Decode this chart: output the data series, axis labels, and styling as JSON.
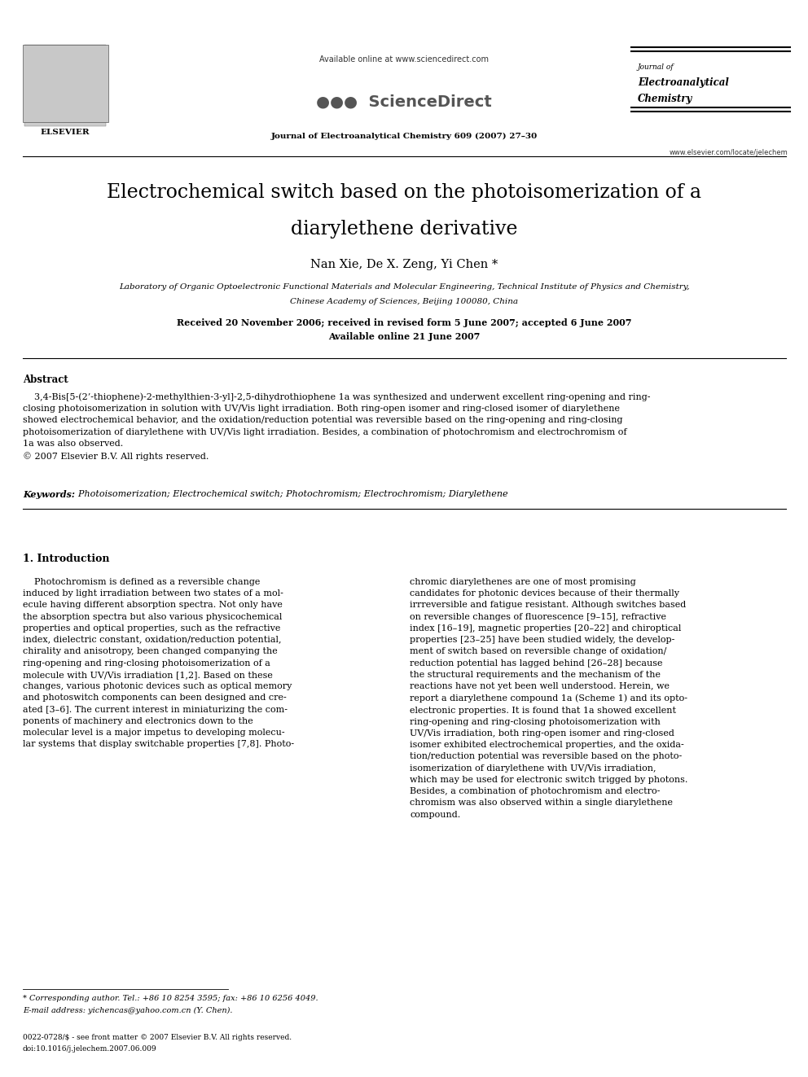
{
  "bg_color": "#ffffff",
  "page_width": 9.92,
  "page_height": 13.23,
  "header_available": "Available online at www.sciencedirect.com",
  "header_sciencedirect": "• ScienceDirect",
  "header_journal_issue": "Journal of Electroanalytical Chemistry 609 (2007) 27–30",
  "header_jname1": "Journal of",
  "header_jname2": "Electroanalytical",
  "header_jname3": "Chemistry",
  "header_website": "www.elsevier.com/locate/jelechem",
  "title_line1": "Electrochemical switch based on the photoisomerization of a",
  "title_line2": "diarylethene derivative",
  "authors": "Nan Xie, De X. Zeng, Yi Chen *",
  "affil1": "Laboratory of Organic Optoelectronic Functional Materials and Molecular Engineering, Technical Institute of Physics and Chemistry,",
  "affil2": "Chinese Academy of Sciences, Beijing 100080, China",
  "received": "Received 20 November 2006; received in revised form 5 June 2007; accepted 6 June 2007",
  "available_online": "Available online 21 June 2007",
  "abstract_label": "Abstract",
  "abstract_body": "    3,4-Bis[5-(2’-thiophene)-2-methylthien-3-yl]-2,5-dihydrothiophene 1a was synthesized and underwent excellent ring-opening and ring-\nclosing photoisomerization in solution with UV/Vis light irradiation. Both ring-open isomer and ring-closed isomer of diarylethene\nshowed electrochemical behavior, and the oxidation/reduction potential was reversible based on the ring-opening and ring-closing\nphotoisomerization of diarylethene with UV/Vis light irradiation. Besides, a combination of photochromism and electrochromism of\n1a was also observed.\n© 2007 Elsevier B.V. All rights reserved.",
  "keywords_label": "Keywords:",
  "keywords_text": "  Photoisomerization; Electrochemical switch; Photochromism; Electrochromism; Diarylethene",
  "section_title": "1. Introduction",
  "col1_text": "    Photochromism is defined as a reversible change\ninduced by light irradiation between two states of a mol-\necule having different absorption spectra. Not only have\nthe absorption spectra but also various physicochemical\nproperties and optical properties, such as the refractive\nindex, dielectric constant, oxidation/reduction potential,\nchirality and anisotropy, been changed companying the\nring-opening and ring-closing photoisomerization of a\nmolecule with UV/Vis irradiation [1,2]. Based on these\nchanges, various photonic devices such as optical memory\nand photoswitch components can been designed and cre-\nated [3–6]. The current interest in miniaturizing the com-\nponents of machinery and electronics down to the\nmolecular level is a major impetus to developing molecu-\nlar systems that display switchable properties [7,8]. Photo-",
  "col2_text": "chromic diarylethenes are one of most promising\ncandidates for photonic devices because of their thermally\nirrreversible and fatigue resistant. Although switches based\non reversible changes of fluorescence [9–15], refractive\nindex [16–19], magnetic properties [20–22] and chiroptical\nproperties [23–25] have been studied widely, the develop-\nment of switch based on reversible change of oxidation/\nreduction potential has lagged behind [26–28] because\nthe structural requirements and the mechanism of the\nreactions have not yet been well understood. Herein, we\nreport a diarylethene compound 1a (Scheme 1) and its opto-\nelectronic properties. It is found that 1a showed excellent\nring-opening and ring-closing photoisomerization with\nUV/Vis irradiation, both ring-open isomer and ring-closed\nisomer exhibited electrochemical properties, and the oxida-\ntion/reduction potential was reversible based on the photo-\nisomerization of diarylethene with UV/Vis irradiation,\nwhich may be used for electronic switch trigged by photons.\nBesides, a combination of photochromism and electro-\nchromism was also observed within a single diarylethene\ncompound.",
  "footnote1": "* Corresponding author. Tel.: +86 10 8254 3595; fax: +86 10 6256 4049.",
  "footnote2": "E-mail address: yichencas@yahoo.com.cn (Y. Chen).",
  "footer1": "0022-0728/$ - see front matter © 2007 Elsevier B.V. All rights reserved.",
  "footer2": "doi:10.1016/j.jelechem.2007.06.009",
  "elsevier_label": "ELSEVIER",
  "blue": "#000080"
}
